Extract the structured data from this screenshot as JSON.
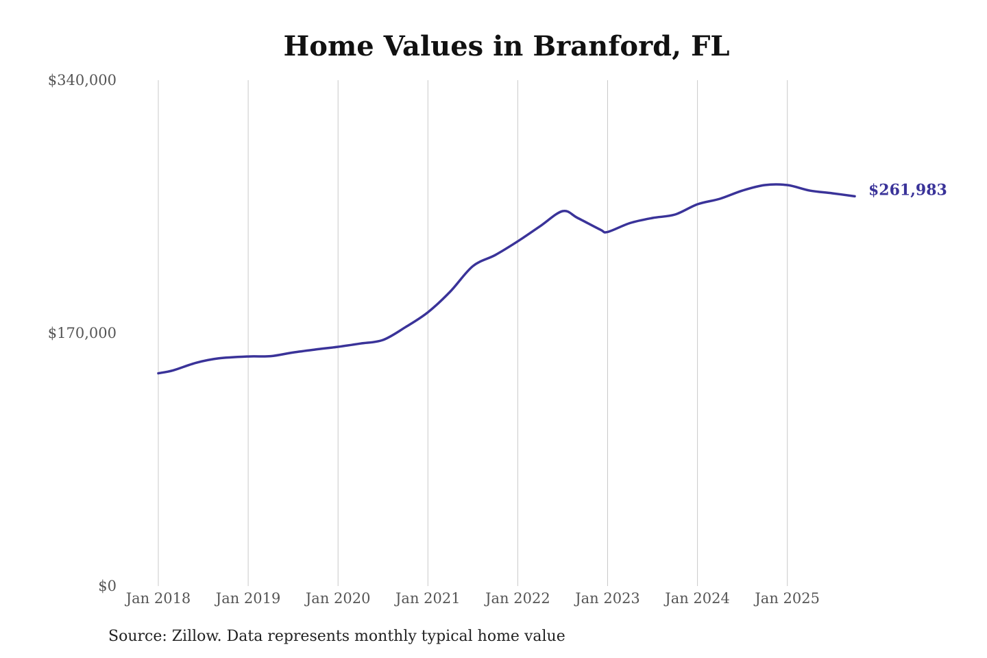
{
  "chart_data": {
    "type": "line",
    "title": "Home Values in Branford, FL",
    "source": "Source: Zillow. Data represents monthly typical home value",
    "xlabel": "",
    "ylabel": "",
    "ylim": [
      0,
      340000
    ],
    "y_ticks": [
      0,
      170000,
      340000
    ],
    "y_tick_labels": [
      "$0",
      "$170,000",
      "$340,000"
    ],
    "x_ticks": [
      "2018-01",
      "2019-01",
      "2020-01",
      "2021-01",
      "2022-01",
      "2023-01",
      "2024-01",
      "2025-01"
    ],
    "x_tick_labels": [
      "Jan 2018",
      "Jan 2019",
      "Jan 2020",
      "Jan 2021",
      "Jan 2022",
      "Jan 2023",
      "Jan 2024",
      "Jan 2025"
    ],
    "grid": "vertical",
    "line_color": "#3a3399",
    "end_label": "$261,983",
    "series": [
      {
        "x": [
          "2018-01",
          "2018-03",
          "2018-06",
          "2018-09",
          "2019-01",
          "2019-04",
          "2019-07",
          "2019-10",
          "2020-01",
          "2020-04",
          "2020-07",
          "2020-10",
          "2021-01",
          "2021-04",
          "2021-07",
          "2021-10",
          "2022-01",
          "2022-04",
          "2022-07",
          "2022-09",
          "2022-12",
          "2023-01",
          "2023-04",
          "2023-07",
          "2023-10",
          "2024-01",
          "2024-04",
          "2024-07",
          "2024-10",
          "2025-01",
          "2025-04",
          "2025-07",
          "2025-10"
        ],
        "values": [
          143000,
          145000,
          150000,
          153000,
          154300,
          154500,
          157000,
          159000,
          160800,
          163000,
          165400,
          174000,
          184000,
          198000,
          215000,
          222500,
          231700,
          241900,
          252000,
          247400,
          239600,
          238000,
          244000,
          247400,
          249700,
          256600,
          260300,
          265800,
          269500,
          269500,
          265800,
          264000,
          261983
        ]
      }
    ]
  }
}
